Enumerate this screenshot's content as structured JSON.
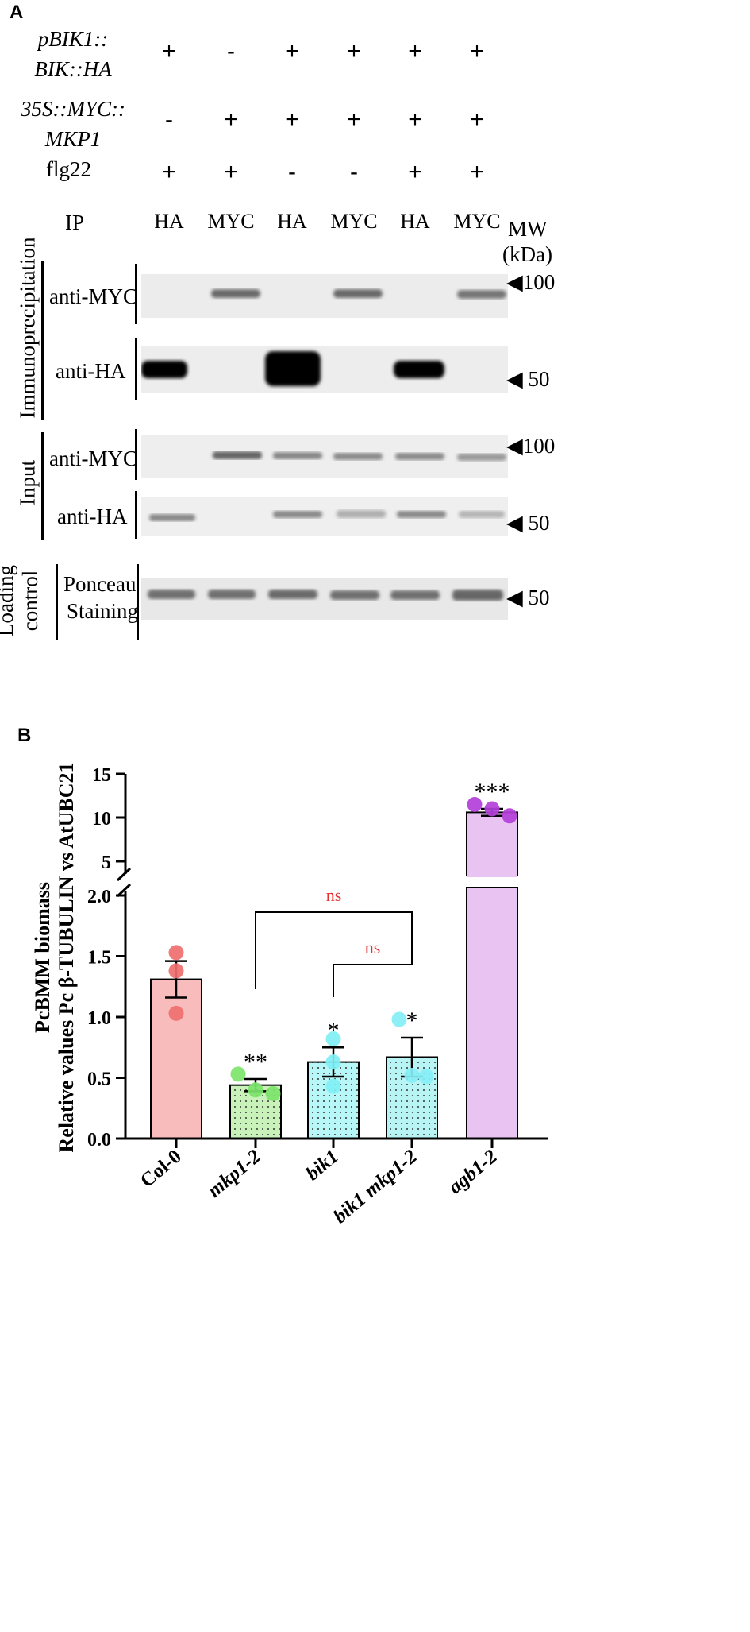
{
  "panel_a": {
    "letter": "A",
    "rows": [
      {
        "line1": "pBIK1::",
        "line2": "BIK::HA",
        "signs": [
          "+",
          "-",
          "+",
          "+",
          "+",
          "+"
        ]
      },
      {
        "line1": "35S::MYC::",
        "line2": "MKP1",
        "signs": [
          "-",
          "+",
          "+",
          "+",
          "+",
          "+"
        ]
      },
      {
        "line1": "flg22",
        "line2": "",
        "signs": [
          "+",
          "+",
          "-",
          "-",
          "+",
          "+"
        ]
      }
    ],
    "ip_label": "IP",
    "ip_columns": [
      "HA",
      "MYC",
      "HA",
      "MYC",
      "HA",
      "MYC"
    ],
    "mw_label_1": "MW",
    "mw_label_2": "(kDa)",
    "section_immuno": "Immunoprecipitation",
    "section_input": "Input",
    "section_loading_1": "Loading",
    "section_loading_2": "control",
    "blot_immuno_myc": "anti-MYC",
    "blot_immuno_ha": "anti-HA",
    "blot_input_myc": "anti-MYC",
    "blot_input_ha": "anti-HA",
    "blot_ponceau_1": "Ponceau",
    "blot_ponceau_2": "Staining",
    "mw_immuno_myc": "100",
    "mw_immuno_ha": "50",
    "mw_input_myc": "100",
    "mw_input_ha": "50",
    "mw_ponceau": "50",
    "marker_glyph": "◀"
  },
  "panel_b": {
    "letter": "B",
    "colors": {
      "Col-0": "#f9bcbc",
      "mkp1-2": "#c9f2bb",
      "bik1": "#b8f7f7",
      "bik1 mkp1-2": "#b8f4f4",
      "agb1-2": "#e9c4f2"
    }
  },
  "chart_data": {
    "type": "bar",
    "categories": [
      "Col-0",
      "mkp1-2",
      "bik1",
      "bik1 mkp1-2",
      "agb1-2"
    ],
    "values": [
      1.31,
      0.44,
      0.63,
      0.67,
      10.6
    ],
    "errors": [
      0.15,
      0.05,
      0.12,
      0.16,
      0.4
    ],
    "points": [
      [
        1.53,
        1.38,
        1.03
      ],
      [
        0.53,
        0.4,
        0.37
      ],
      [
        0.82,
        0.63,
        0.43
      ],
      [
        0.98,
        0.52,
        0.51
      ],
      [
        11.5,
        11.0,
        10.2
      ]
    ],
    "significance": [
      "",
      "**",
      "*",
      "*",
      "***"
    ],
    "comparisons": [
      {
        "from": "mkp1-2",
        "to": "bik1 mkp1-2",
        "label": "ns"
      },
      {
        "from": "bik1",
        "to": "bik1 mkp1-2",
        "label": "ns"
      }
    ],
    "ylabel_1": "PcBMM biomass",
    "ylabel_2": "Relative values Pc β-TUBULIN vs AtUBC21",
    "y_axis_broken": true,
    "lower_ylim": [
      0,
      2.0
    ],
    "upper_ylim": [
      3,
      15
    ],
    "lower_ticks": [
      "0.0",
      "0.5",
      "1.0",
      "1.5",
      "2.0"
    ],
    "upper_ticks": [
      "5",
      "10",
      "15"
    ],
    "point_colors": [
      "#ef6f6f",
      "#7ce46a",
      "#7ff0f5",
      "#86eef5",
      "#b23fd8"
    ]
  }
}
